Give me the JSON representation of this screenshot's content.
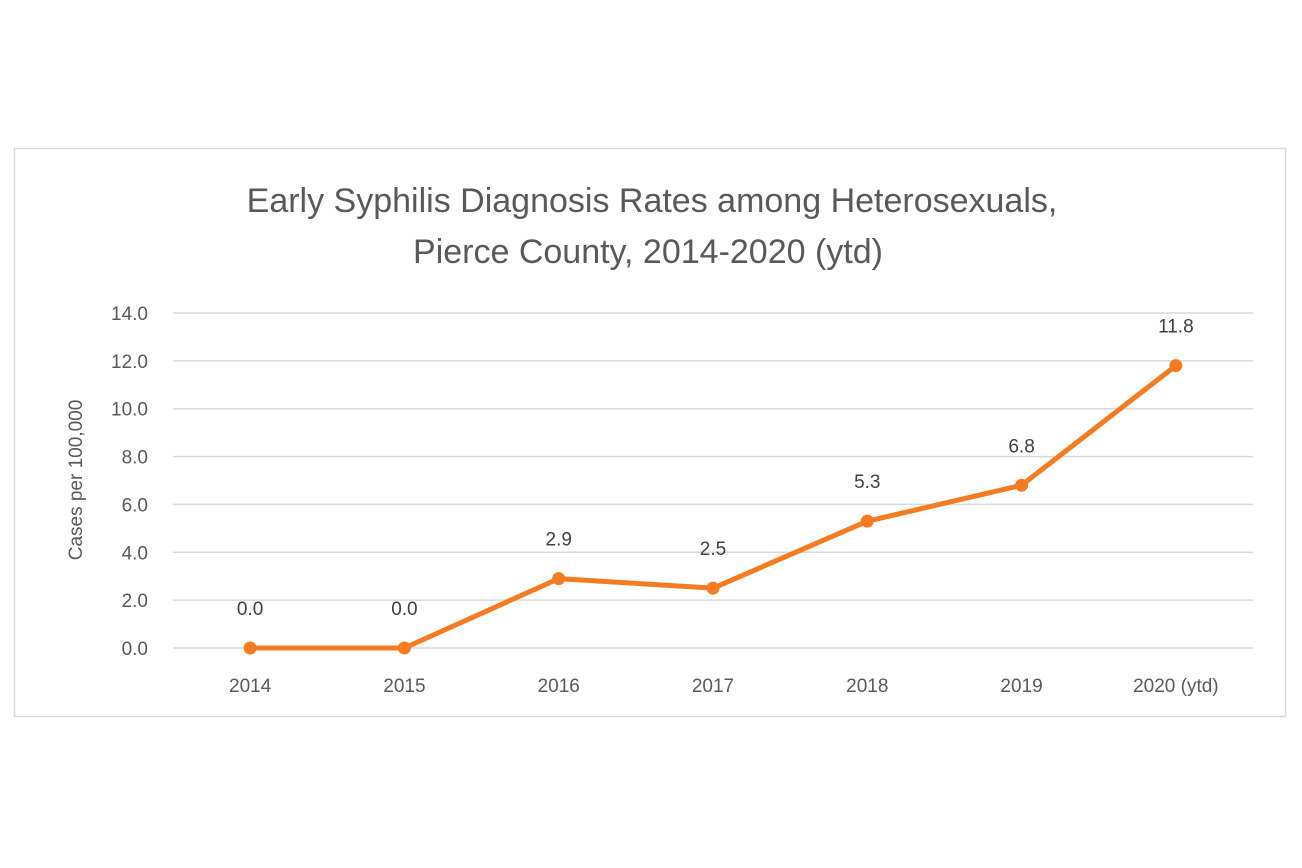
{
  "chart_data": {
    "type": "line",
    "title": [
      "Early Syphilis Diagnosis Rates among Heterosexuals,",
      "Pierce County, 2014-2020 (ytd)"
    ],
    "xlabel": "",
    "ylabel": "Cases per 100,000",
    "categories": [
      "2014",
      "2015",
      "2016",
      "2017",
      "2018",
      "2019",
      "2020 (ytd)"
    ],
    "series": [
      {
        "values": [
          0.0,
          0.0,
          2.9,
          2.5,
          5.3,
          6.8,
          11.8
        ],
        "data_labels": [
          "0.0",
          "0.0",
          "2.9",
          "2.5",
          "5.3",
          "6.8",
          "11.8"
        ],
        "color": "#F47B20"
      }
    ],
    "ylim": [
      0,
      14
    ],
    "yticks": [
      "0.0",
      "2.0",
      "4.0",
      "6.0",
      "8.0",
      "10.0",
      "12.0",
      "14.0"
    ],
    "grid": true,
    "legend": "none"
  }
}
